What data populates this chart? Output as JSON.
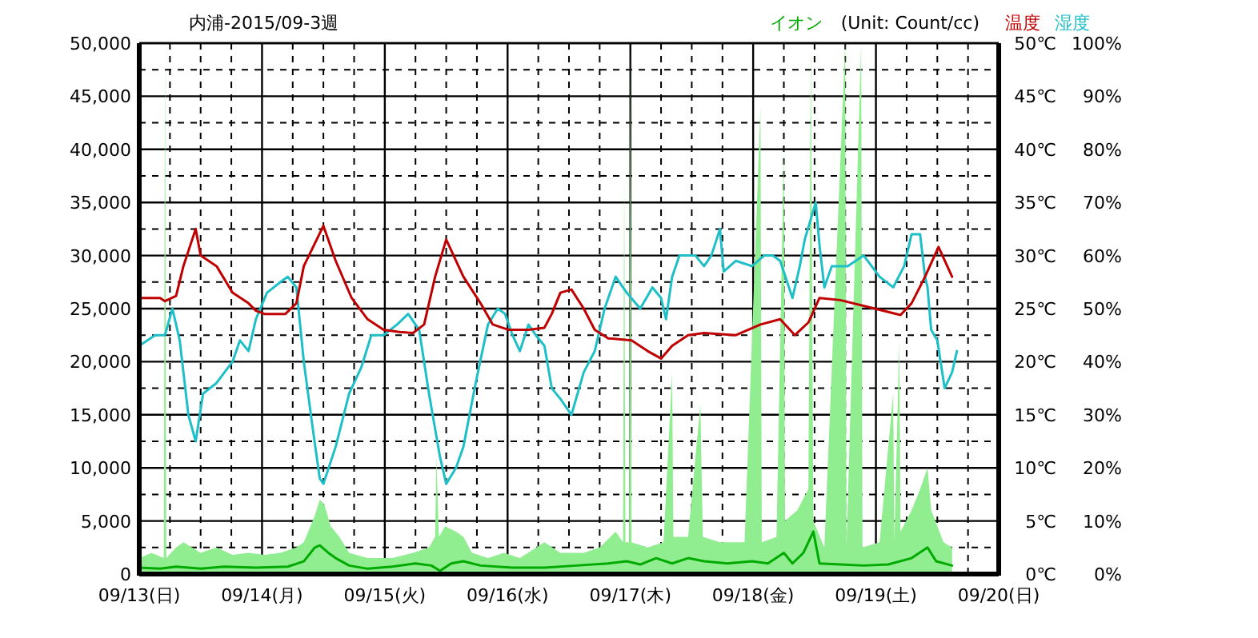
{
  "chart_data": {
    "type": "line",
    "title": "内浦-2015/09-3週",
    "annotations": [
      "(Unit: Count/cc)"
    ],
    "y2label": "温度",
    "y3label": "湿度",
    "xlim": [
      "2015-09-13",
      "2015-09-20"
    ],
    "xticks": [
      {
        "value": "2015-09-13",
        "label": "09/13(日)"
      },
      {
        "value": "2015-09-13T06:00",
        "label": null
      },
      {
        "value": "2015-09-13T12:00",
        "label": null
      },
      {
        "value": "2015-09-13T18:00",
        "label": null
      },
      {
        "value": "2015-09-14",
        "label": "09/14(月)"
      },
      {
        "value": "2015-09-14T06:00",
        "label": null
      },
      {
        "value": "2015-09-14T12:00",
        "label": null
      },
      {
        "value": "2015-09-14T18:00",
        "label": null
      },
      {
        "value": "2015-09-15",
        "label": "09/15(火)"
      },
      {
        "value": "2015-09-15T06:00",
        "label": null
      },
      {
        "value": "2015-09-15T12:00",
        "label": null
      },
      {
        "value": "2015-09-15T18:00",
        "label": null
      },
      {
        "value": "2015-09-16",
        "label": "09/16(水)"
      },
      {
        "value": "2015-09-16T06:00",
        "label": null
      },
      {
        "value": "2015-09-16T12:00",
        "label": null
      },
      {
        "value": "2015-09-16T18:00",
        "label": null
      },
      {
        "value": "2015-09-17",
        "label": "09/17(木)"
      },
      {
        "value": "2015-09-17T06:00",
        "label": null
      },
      {
        "value": "2015-09-17T12:00",
        "label": null
      },
      {
        "value": "2015-09-17T18:00",
        "label": null
      },
      {
        "value": "2015-09-18",
        "label": "09/18(金)"
      },
      {
        "value": "2015-09-18T06:00",
        "label": null
      },
      {
        "value": "2015-09-18T12:00",
        "label": null
      },
      {
        "value": "2015-09-18T18:00",
        "label": null
      },
      {
        "value": "2015-09-19",
        "label": "09/19(土)"
      },
      {
        "value": "2015-09-19T06:00",
        "label": null
      },
      {
        "value": "2015-09-19T12:00",
        "label": null
      },
      {
        "value": "2015-09-19T18:00",
        "label": null
      },
      {
        "value": "2015-09-20",
        "label": "09/20(日)"
      }
    ],
    "ylim": [
      0,
      50000
    ],
    "yticks": [
      0,
      {
        "value": 2500,
        "label": null
      },
      {
        "value": 5000,
        "label": "5,000"
      },
      {
        "value": 7500,
        "label": null
      },
      {
        "value": 10000,
        "label": "10,000"
      },
      {
        "value": 12500,
        "label": null
      },
      {
        "value": 15000,
        "label": "15,000"
      },
      {
        "value": 17500,
        "label": null
      },
      {
        "value": 20000,
        "label": "20,000"
      },
      {
        "value": 22500,
        "label": null
      },
      {
        "value": 25000,
        "label": "25,000"
      },
      {
        "value": 27500,
        "label": null
      },
      {
        "value": 30000,
        "label": "30,000"
      },
      {
        "value": 32500,
        "label": null
      },
      {
        "value": 35000,
        "label": "35,000"
      },
      {
        "value": 37500,
        "label": null
      },
      {
        "value": 40000,
        "label": "40,000"
      },
      {
        "value": 42500,
        "label": null
      },
      {
        "value": 45000,
        "label": "45,000"
      },
      {
        "value": 47500,
        "label": null
      },
      {
        "value": 50000,
        "label": "50,000"
      }
    ],
    "y2lim": [
      0,
      50
    ],
    "y2ticks": [
      {
        "value": 0,
        "label": "0℃"
      },
      {
        "value": 5,
        "label": "5℃"
      },
      {
        "value": 10,
        "label": "10℃"
      },
      {
        "value": 15,
        "label": "15℃"
      },
      {
        "value": 20,
        "label": "20℃"
      },
      {
        "value": 25,
        "label": "25℃"
      },
      {
        "value": 30,
        "label": "30℃"
      },
      {
        "value": 35,
        "label": "35℃"
      },
      {
        "value": 40,
        "label": "40℃"
      },
      {
        "value": 45,
        "label": "45℃"
      },
      {
        "value": 50,
        "label": "50℃"
      }
    ],
    "y3lim": [
      0,
      100
    ],
    "y3ticks": [
      {
        "value": 0,
        "label": "0%"
      },
      {
        "value": 10,
        "label": "10%"
      },
      {
        "value": 20,
        "label": "20%"
      },
      {
        "value": 30,
        "label": "30%"
      },
      {
        "value": 40,
        "label": "40%"
      },
      {
        "value": 50,
        "label": "50%"
      },
      {
        "value": 60,
        "label": "60%"
      },
      {
        "value": 70,
        "label": "70%"
      },
      {
        "value": 80,
        "label": "80%"
      },
      {
        "value": 90,
        "label": "90%"
      },
      {
        "value": 100,
        "label": "100%"
      }
    ],
    "grid": true,
    "legend": "top",
    "series": [
      {
        "type": "area",
        "color": "#90ee90",
        "x": [
          "2015-09-13T00:00",
          "2015-09-13T02:24",
          "2015-09-13T04:48",
          "2015-09-13T05:02",
          "2015-09-13T05:17",
          "2015-09-13T07:12",
          "2015-09-13T08:38",
          "2015-09-13T10:19",
          "2015-09-13T12:00",
          "2015-09-13T15:07",
          "2015-09-13T18:14",
          "2015-09-13T21:22",
          "2015-09-14T00:29",
          "2015-09-14T03:36",
          "2015-09-14T06:43",
          "2015-09-14T08:10",
          "2015-09-14T10:19",
          "2015-09-14T11:17",
          "2015-09-14T12:14",
          "2015-09-14T13:26",
          "2015-09-14T15:07",
          "2015-09-14T17:02",
          "2015-09-14T20:38",
          "2015-09-15T01:26",
          "2015-09-15T05:31",
          "2015-09-15T08:38",
          "2015-09-15T09:50",
          "2015-09-15T10:05",
          "2015-09-15T10:34",
          "2015-09-15T11:46",
          "2015-09-15T13:55",
          "2015-09-15T15:22",
          "2015-09-15T17:02",
          "2015-09-15T20:10",
          "2015-09-15T23:17",
          "2015-09-16T02:24",
          "2015-09-16T07:12",
          "2015-09-16T10:19",
          "2015-09-16T14:53",
          "2015-09-16T18:00",
          "2015-09-16T21:07",
          "2015-09-16T22:34",
          "2015-09-16T22:48",
          "2015-09-16T23:02",
          "2015-09-16T23:46",
          "2015-09-17T00:00",
          "2015-09-17T00:14",
          "2015-09-17T03:22",
          "2015-09-17T06:29",
          "2015-09-17T08:10",
          "2015-09-17T08:24",
          "2015-09-17T11:17",
          "2015-09-17T13:41",
          "2015-09-17T14:10",
          "2015-09-17T17:31",
          "2015-09-17T22:19",
          "2015-09-18T01:26",
          "2015-09-18T01:41",
          "2015-09-18T04:34",
          "2015-09-18T06:00",
          "2015-09-18T06:14",
          "2015-09-18T08:38",
          "2015-09-18T10:48",
          "2015-09-18T11:17",
          "2015-09-18T11:46",
          "2015-09-18T13:55",
          "2015-09-18T18:00",
          "2015-09-18T18:14",
          "2015-09-18T21:07",
          "2015-09-18T21:22",
          "2015-09-19T00:43",
          "2015-09-19T03:22",
          "2015-09-19T03:36",
          "2015-09-19T04:34",
          "2015-09-19T04:48",
          "2015-09-19T06:58",
          "2015-09-19T08:38",
          "2015-09-19T10:05",
          "2015-09-19T10:48",
          "2015-09-19T13:12",
          "2015-09-19T14:53"
        ],
        "values": [
          1500,
          2000,
          1500,
          50000,
          1500,
          2500,
          3000,
          2500,
          2000,
          2500,
          1800,
          2000,
          1800,
          2000,
          2500,
          3000,
          5500,
          7000,
          6500,
          4500,
          3500,
          2000,
          1500,
          1500,
          2000,
          2500,
          3500,
          11000,
          3500,
          4500,
          4000,
          3500,
          2000,
          1500,
          2000,
          1500,
          3000,
          2000,
          2000,
          2500,
          4000,
          3000,
          38000,
          3000,
          3000,
          50000,
          3000,
          2500,
          3000,
          19000,
          3500,
          3500,
          16000,
          3500,
          3000,
          3000,
          44000,
          3000,
          3500,
          40000,
          5000,
          6000,
          8000,
          50000,
          5000,
          2500,
          50000,
          2500,
          50000,
          2500,
          3000,
          17000,
          3000,
          22000,
          4000,
          6000,
          8000,
          10000,
          6000,
          3000,
          2500
        ]
      },
      {
        "name": "イオン",
        "color": "#00aa00",
        "x": [
          "2015-09-13T00:00",
          "2015-09-13T04:05",
          "2015-09-13T07:12",
          "2015-09-13T12:00",
          "2015-09-13T16:34",
          "2015-09-13T22:48",
          "2015-09-14T05:02",
          "2015-09-14T08:10",
          "2015-09-14T10:19",
          "2015-09-14T11:17",
          "2015-09-14T12:58",
          "2015-09-14T14:24",
          "2015-09-14T17:02",
          "2015-09-14T20:38",
          "2015-09-15T01:26",
          "2015-09-15T06:00",
          "2015-09-15T09:07",
          "2015-09-15T10:48",
          "2015-09-15T12:58",
          "2015-09-15T15:22",
          "2015-09-15T18:43",
          "2015-09-16T00:58",
          "2015-09-16T07:12",
          "2015-09-16T13:26",
          "2015-09-16T19:41",
          "2015-09-16T23:17",
          "2015-09-17T01:55",
          "2015-09-17T05:02",
          "2015-09-17T08:10",
          "2015-09-17T11:17",
          "2015-09-17T14:24",
          "2015-09-17T18:58",
          "2015-09-17T23:46",
          "2015-09-18T02:53",
          "2015-09-18T06:00",
          "2015-09-18T07:41",
          "2015-09-18T09:50",
          "2015-09-18T11:46",
          "2015-09-18T12:58",
          "2015-09-18T17:02",
          "2015-09-18T21:36",
          "2015-09-19T02:24",
          "2015-09-19T06:58",
          "2015-09-19T10:05",
          "2015-09-19T11:46",
          "2015-09-19T14:53"
        ],
        "values": [
          600,
          500,
          700,
          500,
          700,
          600,
          700,
          1200,
          2500,
          2700,
          2000,
          1500,
          800,
          500,
          700,
          1000,
          800,
          300,
          1000,
          1200,
          800,
          600,
          600,
          800,
          1000,
          1200,
          900,
          1500,
          1000,
          1500,
          1200,
          1000,
          1200,
          1000,
          2000,
          1000,
          2000,
          4000,
          1000,
          900,
          800,
          900,
          1500,
          2500,
          1200,
          800
        ]
      },
      {
        "axis": "y3",
        "color": "#1fbfc8",
        "x": [
          "2015-09-13T00:00",
          "2015-09-13T03:07",
          "2015-09-13T05:02",
          "2015-09-13T06:29",
          "2015-09-13T07:55",
          "2015-09-13T09:36",
          "2015-09-13T11:02",
          "2015-09-13T12:29",
          "2015-09-13T15:07",
          "2015-09-13T18:14",
          "2015-09-13T19:41",
          "2015-09-13T21:22",
          "2015-09-13T22:48",
          "2015-09-14T00:58",
          "2015-09-14T03:36",
          "2015-09-14T05:02",
          "2015-09-14T06:43",
          "2015-09-14T08:10",
          "2015-09-14T09:50",
          "2015-09-14T11:17",
          "2015-09-14T12:00",
          "2015-09-14T14:24",
          "2015-09-14T17:02",
          "2015-09-14T19:26",
          "2015-09-14T21:22",
          "2015-09-14T23:46",
          "2015-09-15T02:24",
          "2015-09-15T04:34",
          "2015-09-15T06:43",
          "2015-09-15T08:38",
          "2015-09-15T10:48",
          "2015-09-15T12:00",
          "2015-09-15T13:55",
          "2015-09-15T15:22",
          "2015-09-15T17:46",
          "2015-09-15T20:10",
          "2015-09-15T22:05",
          "2015-09-15T23:31",
          "2015-09-16T00:58",
          "2015-09-16T02:24",
          "2015-09-16T04:05",
          "2015-09-16T05:31",
          "2015-09-16T07:12",
          "2015-09-16T08:38",
          "2015-09-16T10:19",
          "2015-09-16T12:29",
          "2015-09-16T14:53",
          "2015-09-16T17:02",
          "2015-09-16T18:58",
          "2015-09-16T21:07",
          "2015-09-16T23:17",
          "2015-09-17T01:55",
          "2015-09-17T04:19",
          "2015-09-17T06:00",
          "2015-09-17T06:58",
          "2015-09-17T08:10",
          "2015-09-17T09:36",
          "2015-09-17T12:43",
          "2015-09-17T14:24",
          "2015-09-17T15:50",
          "2015-09-17T17:31",
          "2015-09-17T18:14",
          "2015-09-17T20:38",
          "2015-09-17T23:46",
          "2015-09-18T02:10",
          "2015-09-18T03:50",
          "2015-09-18T05:17",
          "2015-09-18T07:41",
          "2015-09-18T09:07",
          "2015-09-18T10:05",
          "2015-09-18T12:14",
          "2015-09-18T12:58",
          "2015-09-18T13:55",
          "2015-09-18T15:22",
          "2015-09-18T18:29",
          "2015-09-18T21:36",
          "2015-09-19T00:43",
          "2015-09-19T03:22",
          "2015-09-19T05:31",
          "2015-09-19T06:58",
          "2015-09-19T08:38",
          "2015-09-19T09:36",
          "2015-09-19T10:05",
          "2015-09-19T10:48",
          "2015-09-19T12:00",
          "2015-09-19T13:26",
          "2015-09-19T14:53",
          "2015-09-19T15:50"
        ],
        "values": [
          43,
          45,
          45,
          50,
          44,
          30,
          25,
          34,
          36,
          40,
          44,
          42,
          48,
          53,
          55,
          56,
          54,
          40,
          28,
          18,
          17,
          24,
          34,
          39,
          45,
          45,
          47,
          49,
          46,
          34,
          22,
          17,
          20,
          24,
          36,
          47,
          50,
          49,
          45,
          42,
          47,
          45,
          43,
          35,
          33,
          30,
          38,
          42,
          50,
          56,
          53,
          50,
          54,
          52,
          48,
          56,
          60,
          60,
          58,
          60,
          65,
          57,
          59,
          58,
          60,
          60,
          59,
          52,
          58,
          63,
          70,
          62,
          54,
          58,
          58,
          60,
          56,
          54,
          58,
          64,
          64,
          56,
          54,
          46,
          44,
          35,
          38,
          42
        ]
      },
      {
        "axis": "y2",
        "color": "#c00000",
        "x": [
          "2015-09-13T00:00",
          "2015-09-13T04:05",
          "2015-09-13T05:02",
          "2015-09-13T07:12",
          "2015-09-13T08:38",
          "2015-09-13T11:02",
          "2015-09-13T12:00",
          "2015-09-13T15:07",
          "2015-09-13T18:14",
          "2015-09-13T21:22",
          "2015-09-13T22:48",
          "2015-09-14T00:29",
          "2015-09-14T04:34",
          "2015-09-14T06:43",
          "2015-09-14T08:10",
          "2015-09-14T12:00",
          "2015-09-14T14:24",
          "2015-09-14T17:31",
          "2015-09-14T20:38",
          "2015-09-14T23:46",
          "2015-09-15T02:53",
          "2015-09-15T05:31",
          "2015-09-15T07:41",
          "2015-09-15T09:50",
          "2015-09-15T12:00",
          "2015-09-15T15:22",
          "2015-09-15T18:43",
          "2015-09-15T21:07",
          "2015-09-16T00:14",
          "2015-09-16T04:05",
          "2015-09-16T07:12",
          "2015-09-16T08:38",
          "2015-09-16T10:19",
          "2015-09-16T12:29",
          "2015-09-16T14:53",
          "2015-09-16T17:02",
          "2015-09-16T19:41",
          "2015-09-17T00:14",
          "2015-09-17T03:22",
          "2015-09-17T06:00",
          "2015-09-17T08:10",
          "2015-09-17T11:17",
          "2015-09-17T14:24",
          "2015-09-17T20:38",
          "2015-09-18T01:26",
          "2015-09-18T05:17",
          "2015-09-18T08:10",
          "2015-09-18T10:48",
          "2015-09-18T12:58",
          "2015-09-18T17:02",
          "2015-09-18T23:46",
          "2015-09-19T04:48",
          "2015-09-19T06:58",
          "2015-09-19T09:36",
          "2015-09-19T12:14",
          "2015-09-19T14:53"
        ],
        "values": [
          26.0,
          26.0,
          25.7,
          26.2,
          29,
          32.5,
          30,
          29,
          26.5,
          25.5,
          24.8,
          24.5,
          24.5,
          25.5,
          29,
          32.8,
          29.5,
          26,
          24,
          23,
          22.8,
          22.7,
          23.5,
          28,
          31.5,
          28,
          25.5,
          23.5,
          23,
          23,
          23.2,
          24.5,
          26.5,
          26.8,
          25,
          23,
          22.2,
          22,
          21,
          20.3,
          21.5,
          22.5,
          22.7,
          22.5,
          23.5,
          24.0,
          22.5,
          23.7,
          26,
          25.8,
          25.0,
          24.4,
          25.5,
          28,
          30.8,
          28
        ]
      }
    ]
  }
}
